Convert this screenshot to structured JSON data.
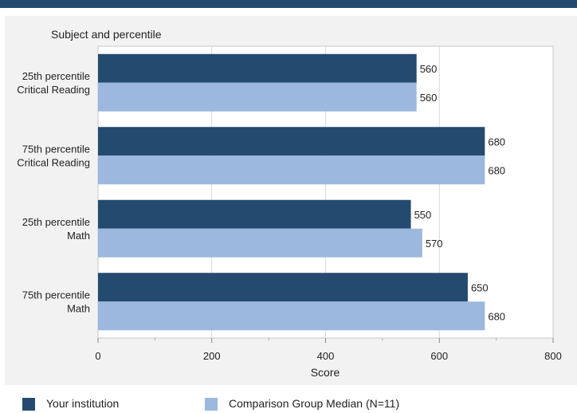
{
  "chart_data": {
    "type": "bar",
    "orientation": "horizontal",
    "title": "Subject and percentile",
    "xlabel": "Score",
    "ylabel": "",
    "xlim": [
      0,
      800
    ],
    "xticks": [
      "0",
      "200",
      "400",
      "600",
      "800"
    ],
    "categories": [
      [
        "25th percentile",
        "Critical Reading"
      ],
      [
        "75th percentile",
        "Critical Reading"
      ],
      [
        "25th percentile",
        "Math"
      ],
      [
        "75th percentile",
        "Math"
      ]
    ],
    "series": [
      {
        "name": "Your institution",
        "values": [
          560,
          680,
          550,
          650
        ],
        "color": "#254a70"
      },
      {
        "name": "Comparison Group Median (N=11)",
        "values": [
          560,
          680,
          570,
          680
        ],
        "color": "#9cb8de"
      }
    ],
    "grid": true,
    "legend_position": "bottom"
  }
}
